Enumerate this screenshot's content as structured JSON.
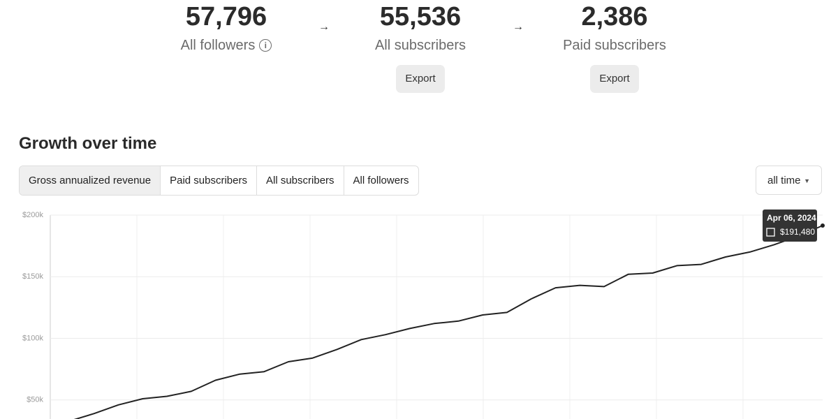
{
  "stats": [
    {
      "number": "57,796",
      "label": "All followers"
    },
    {
      "number": "55,536",
      "label": "All subscribers",
      "button": "Export"
    },
    {
      "number": "2,386",
      "label": "Paid subscribers",
      "button": "Export"
    }
  ],
  "section_title": "Growth over time",
  "tabs": [
    "Gross annualized revenue",
    "Paid subscribers",
    "All subscribers",
    "All followers"
  ],
  "range_select": "all time",
  "chart_data": {
    "type": "line",
    "values": [
      33000,
      39000,
      46000,
      51000,
      53000,
      57000,
      66000,
      71000,
      73000,
      81000,
      84000,
      91000,
      99000,
      103000,
      108000,
      112000,
      114000,
      119000,
      121000,
      132000,
      141000,
      143000,
      142000,
      152000,
      153000,
      159000,
      160000,
      166000,
      170000,
      176000,
      183000,
      191480
    ],
    "color": "#222222",
    "ylim": [
      0,
      200000
    ],
    "yticks": [
      {
        "value": 50000,
        "label": "$50k"
      },
      {
        "value": 100000,
        "label": "$100k"
      },
      {
        "value": 150000,
        "label": "$150k"
      },
      {
        "value": 200000,
        "label": "$200k"
      }
    ],
    "grid": true,
    "tooltip": {
      "title": "Apr 06, 2024",
      "value": 191480,
      "label": "$191,480"
    }
  }
}
